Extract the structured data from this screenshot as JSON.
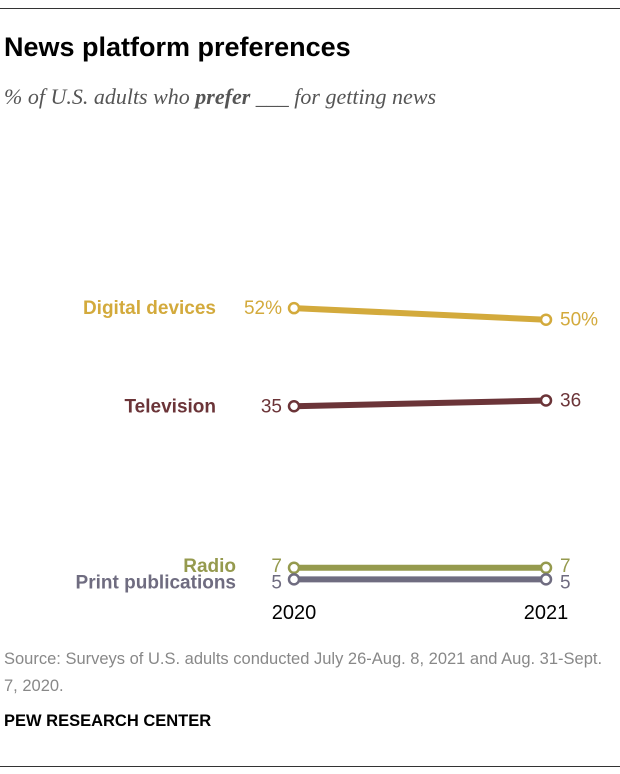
{
  "header": {
    "title": "News platform preferences",
    "subtitle_prefix": "% of U.S. adults who ",
    "subtitle_emphasis": "prefer",
    "subtitle_blank": " ___ ",
    "subtitle_suffix": "for getting news"
  },
  "chart_data": {
    "type": "line",
    "title": "News platform preferences",
    "subtitle": "% of U.S. adults who prefer ___ for getting news",
    "x": [
      "2020",
      "2021"
    ],
    "ylim": [
      0,
      60
    ],
    "grid": false,
    "legend": "direct labels at left",
    "series": [
      {
        "name": "Digital devices",
        "color": "#d3aa3c",
        "values": [
          52,
          50
        ],
        "labels": [
          "52%",
          "50%"
        ]
      },
      {
        "name": "Television",
        "color": "#6b3438",
        "values": [
          35,
          36
        ],
        "labels": [
          "35",
          "36"
        ]
      },
      {
        "name": "Radio",
        "color": "#959a4e",
        "values": [
          7,
          7
        ],
        "labels": [
          "7",
          "7"
        ]
      },
      {
        "name": "Print publications",
        "color": "#6f6c80",
        "values": [
          5,
          5
        ],
        "labels": [
          "5",
          "5"
        ]
      }
    ]
  },
  "footer": {
    "source": "Source: Surveys of U.S. adults conducted July 26-Aug. 8, 2021 and Aug. 31-Sept. 7, 2020.",
    "credit": "PEW RESEARCH CENTER"
  }
}
